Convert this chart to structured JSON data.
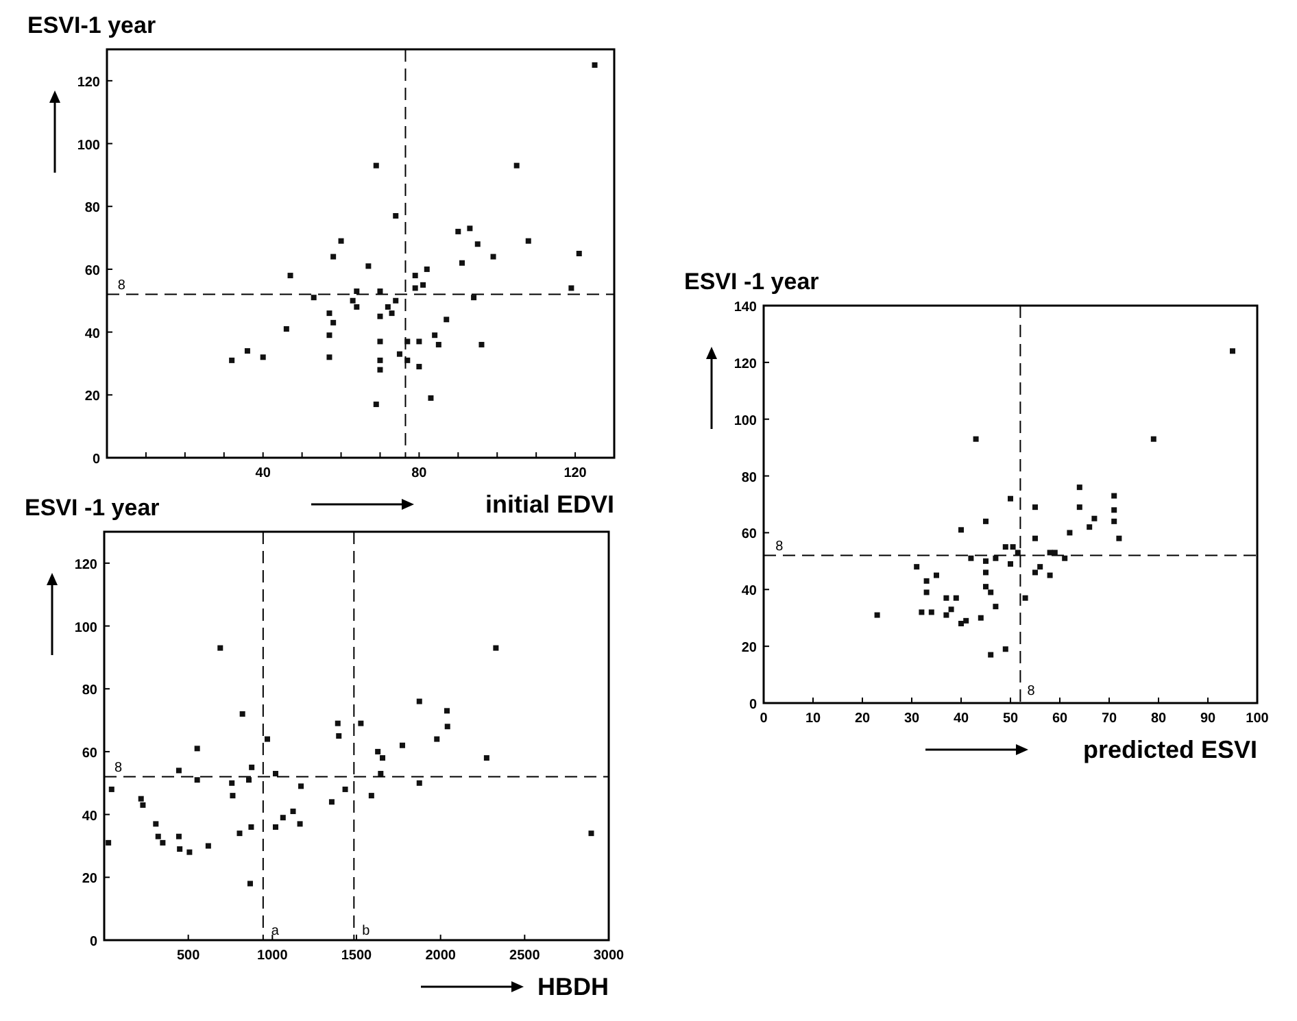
{
  "chart_data": [
    {
      "type": "scatter",
      "ylabel": "ESVI-1 year",
      "xlabel": "initial EDVI",
      "xlim": [
        0,
        130
      ],
      "ylim": [
        0,
        130
      ],
      "xticks": [
        {
          "value": 10,
          "label": null
        },
        {
          "value": 20,
          "label": null
        },
        {
          "value": 30,
          "label": null
        },
        40,
        {
          "value": 50,
          "label": null
        },
        {
          "value": 60,
          "label": null
        },
        {
          "value": 70,
          "label": null
        },
        80,
        {
          "value": 90,
          "label": null
        },
        {
          "value": 100,
          "label": null
        },
        {
          "value": 110,
          "label": null
        },
        120
      ],
      "yticks": [
        0,
        20,
        40,
        60,
        80,
        100,
        120
      ],
      "grid": false,
      "marker": "square",
      "annotations": [
        {
          "text": "8",
          "x": 1,
          "y": 52
        }
      ],
      "ref_lines": [
        {
          "axis": "y",
          "value": 52,
          "label": null,
          "line_style": "dashed"
        },
        {
          "axis": "x",
          "value": 76.5,
          "label": null,
          "line_style": "dashed"
        }
      ],
      "series": [
        {
          "color": "#111111",
          "x": [
            32,
            36,
            40,
            46,
            47,
            53,
            57,
            57,
            57,
            58,
            58,
            60,
            64,
            63,
            64,
            67,
            69,
            69,
            70,
            70,
            70,
            70,
            70,
            72,
            73,
            74,
            74,
            75,
            77,
            77,
            79,
            79,
            80,
            80,
            81,
            82,
            83,
            84,
            85,
            87,
            90,
            91,
            93,
            94,
            95,
            96,
            99,
            105,
            108,
            119,
            121,
            125
          ],
          "values": [
            31,
            34,
            32,
            41,
            58,
            51,
            46,
            39,
            32,
            43,
            64,
            69,
            53,
            50,
            48,
            61,
            93,
            17,
            45,
            37,
            31,
            28,
            53,
            48,
            46,
            77,
            50,
            33,
            37,
            31,
            58,
            54,
            37,
            29,
            55,
            60,
            19,
            39,
            36,
            44,
            72,
            62,
            73,
            51,
            68,
            36,
            64,
            93,
            69,
            54,
            65,
            125
          ]
        }
      ]
    },
    {
      "type": "scatter",
      "ylabel": "ESVI -1 year",
      "xlabel": "HBDH",
      "xlim": [
        0,
        3000
      ],
      "ylim": [
        0,
        130
      ],
      "xticks": [
        500,
        1000,
        1500,
        2000,
        2500,
        3000
      ],
      "yticks": [
        0,
        20,
        40,
        60,
        80,
        100,
        120
      ],
      "grid": false,
      "marker": "square",
      "annotations": [
        {
          "text": "8",
          "x": 20,
          "y": 52
        }
      ],
      "ref_lines": [
        {
          "axis": "y",
          "value": 52,
          "label": null,
          "line_style": "dashed"
        },
        {
          "axis": "x",
          "value": 945,
          "label": "a",
          "line_style": "dashed"
        },
        {
          "axis": "x",
          "value": 1485,
          "label": "b",
          "line_style": "dashed"
        }
      ],
      "series": [
        {
          "color": "#111111",
          "x": [
            25,
            44,
            219,
            230,
            307,
            321,
            348,
            444,
            444,
            449,
            507,
            553,
            553,
            619,
            690,
            759,
            764,
            805,
            822,
            860,
            874,
            877,
            868,
            970,
            1019,
            1019,
            1063,
            1123,
            1164,
            1170,
            1353,
            1389,
            1395,
            1433,
            1526,
            1589,
            1627,
            1655,
            1644,
            1773,
            1874,
            1874,
            1978,
            2038,
            2041,
            2274,
            2329,
            2896
          ],
          "values": [
            31,
            48,
            45,
            43,
            37,
            33,
            31,
            54,
            33,
            29,
            28,
            51,
            61,
            30,
            93,
            50,
            46,
            34,
            72,
            51,
            36,
            55,
            18,
            64,
            53,
            36,
            39,
            41,
            37,
            49,
            44,
            69,
            65,
            48,
            69,
            46,
            60,
            58,
            53,
            62,
            76,
            50,
            64,
            73,
            68,
            58,
            93,
            34
          ]
        }
      ]
    },
    {
      "type": "scatter",
      "ylabel": "ESVI -1 year",
      "xlabel": "predicted ESVI",
      "xlim": [
        0,
        100
      ],
      "ylim": [
        0,
        140
      ],
      "xticks": [
        0,
        10,
        20,
        30,
        40,
        50,
        60,
        70,
        80,
        90,
        100
      ],
      "yticks": [
        0,
        20,
        40,
        60,
        80,
        100,
        120,
        140
      ],
      "grid": false,
      "marker": "square",
      "annotations": [
        {
          "text": "8",
          "x": 1,
          "y": 52
        },
        {
          "text": "8",
          "x": 52,
          "y": 1
        }
      ],
      "ref_lines": [
        {
          "axis": "y",
          "value": 52,
          "label": null,
          "line_style": "dashed"
        },
        {
          "axis": "x",
          "value": 52,
          "label": null,
          "line_style": "dashed"
        }
      ],
      "series": [
        {
          "color": "#111111",
          "x": [
            23,
            31,
            32,
            33,
            33,
            34,
            35,
            37,
            37,
            38,
            39,
            40,
            40,
            41,
            42,
            43,
            44,
            45,
            45,
            45,
            45,
            46,
            46,
            47,
            47,
            49,
            49,
            50,
            50,
            50.5,
            51.5,
            53,
            55,
            55,
            55,
            56,
            58,
            58,
            59,
            61,
            62,
            64,
            64,
            66,
            67,
            71,
            71,
            71,
            72,
            79,
            95
          ],
          "values": [
            31,
            48,
            32,
            43,
            39,
            32,
            45,
            37,
            31,
            33,
            37,
            61,
            28,
            29,
            51,
            93,
            30,
            50,
            46,
            41,
            64,
            39,
            17,
            34,
            51,
            19,
            55,
            49,
            72,
            55,
            53,
            37,
            58,
            69,
            46,
            48,
            45,
            53,
            53,
            51,
            60,
            76,
            69,
            62,
            65,
            73,
            68,
            64,
            58,
            93,
            124
          ]
        }
      ]
    }
  ]
}
